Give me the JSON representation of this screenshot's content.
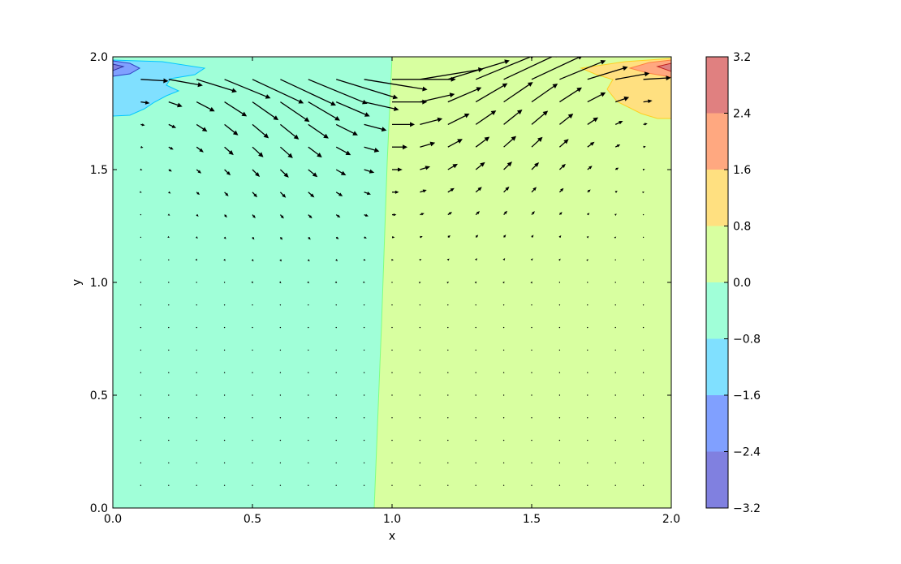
{
  "chart_data": {
    "type": "contourf_quiver",
    "xlabel": "x",
    "ylabel": "y",
    "xlim": [
      0.0,
      2.0
    ],
    "ylim": [
      0.0,
      2.0
    ],
    "x_ticks": [
      "0.0",
      "0.5",
      "1.0",
      "1.5",
      "2.0"
    ],
    "y_ticks": [
      "0.0",
      "0.5",
      "1.0",
      "1.5",
      "2.0"
    ],
    "grid": false,
    "legend": "none",
    "colorbar": {
      "placement": "right",
      "levels": [
        -3.2,
        -2.4,
        -1.6,
        -0.8,
        0.0,
        0.8,
        1.6,
        2.4,
        3.2
      ],
      "tick_labels": [
        "3.2",
        "2.4",
        "1.6",
        "0.8",
        "0.0",
        "−0.8",
        "−1.6",
        "−2.4",
        "−3.2"
      ],
      "band_colors": [
        "#8080e0",
        "#80a0ff",
        "#80e0ff",
        "#a0ffd8",
        "#d8ffa0",
        "#ffe080",
        "#ffa880",
        "#e08080"
      ]
    },
    "field_regions": [
      {
        "level_range": [
          -0.8,
          0.0
        ],
        "description_value": "left half",
        "x_range": [
          0.0,
          0.97
        ]
      },
      {
        "level_range": [
          0.0,
          0.8
        ],
        "description_value": "right half",
        "x_range": [
          0.97,
          2.0
        ]
      },
      {
        "level_range": [
          -1.6,
          -0.8
        ],
        "x_range": [
          0.0,
          0.33
        ],
        "y_range": [
          1.74,
          2.0
        ]
      },
      {
        "level_range": [
          -3.2,
          -1.6
        ],
        "x_range": [
          0.0,
          0.08
        ],
        "y_range": [
          1.92,
          1.98
        ]
      },
      {
        "level_range": [
          0.8,
          1.6
        ],
        "x_range": [
          1.7,
          2.0
        ],
        "y_range": [
          1.74,
          2.0
        ]
      },
      {
        "level_range": [
          1.6,
          3.2
        ],
        "x_range": [
          1.92,
          2.0
        ],
        "y_range": [
          1.92,
          1.98
        ]
      }
    ],
    "quiver": {
      "grid_x_start": 0.1,
      "grid_x_step": 0.1,
      "grid_nx": 19,
      "grid_y_start": 0.1,
      "grid_y_step": 0.1,
      "grid_ny": 19,
      "lid_velocity": 1.0
    }
  },
  "labels": {
    "x_axis_title": "x",
    "y_axis_title": "y"
  },
  "colors": {
    "axes_edge": "#000000",
    "arrow": "#000000",
    "contour_line_low": "#3030c0",
    "contour_line_mid": "#00c0ff",
    "contour_line_high": "#e0c000",
    "contour_line_top": "#c02020"
  }
}
